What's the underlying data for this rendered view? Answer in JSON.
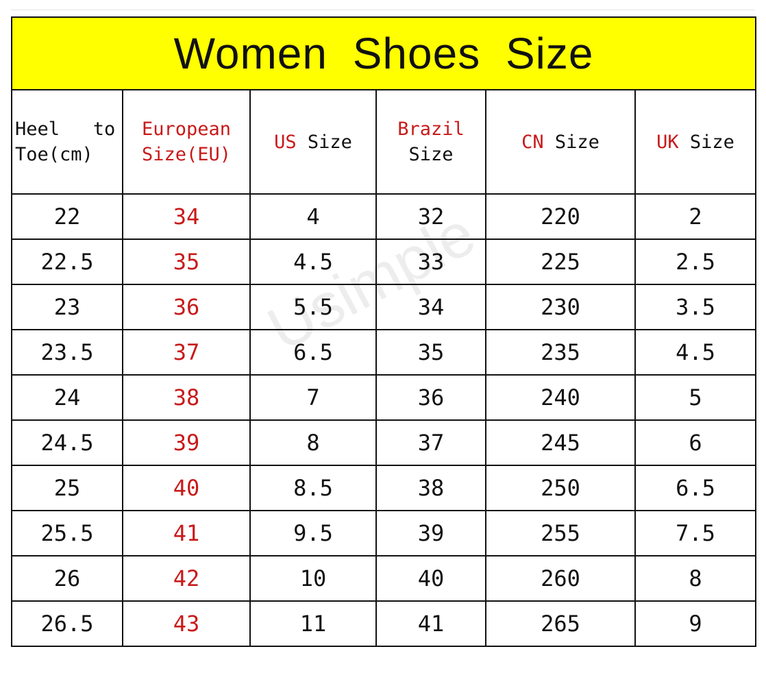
{
  "title": "Women Shoes Size",
  "watermark": "Usimple",
  "colors": {
    "title_bg": "#ffff00",
    "accent_red": "#c81a1a"
  },
  "headers": [
    {
      "line1": "Heel   to",
      "line2": "Toe(cm)"
    },
    {
      "line1": "European",
      "line2": "Size(EU)"
    },
    {
      "red": "US",
      "rest": " Size"
    },
    {
      "line1": "Brazil",
      "line2": "Size"
    },
    {
      "red": "CN",
      "rest": " Size"
    },
    {
      "red": "UK",
      "rest": " Size"
    }
  ],
  "rows": [
    [
      "22",
      "34",
      "4",
      "32",
      "220",
      "2"
    ],
    [
      "22.5",
      "35",
      "4.5",
      "33",
      "225",
      "2.5"
    ],
    [
      "23",
      "36",
      "5.5",
      "34",
      "230",
      "3.5"
    ],
    [
      "23.5",
      "37",
      "6.5",
      "35",
      "235",
      "4.5"
    ],
    [
      "24",
      "38",
      "7",
      "36",
      "240",
      "5"
    ],
    [
      "24.5",
      "39",
      "8",
      "37",
      "245",
      "6"
    ],
    [
      "25",
      "40",
      "8.5",
      "38",
      "250",
      "6.5"
    ],
    [
      "25.5",
      "41",
      "9.5",
      "39",
      "255",
      "7.5"
    ],
    [
      "26",
      "42",
      "10",
      "40",
      "260",
      "8"
    ],
    [
      "26.5",
      "43",
      "11",
      "41",
      "265",
      "9"
    ]
  ]
}
